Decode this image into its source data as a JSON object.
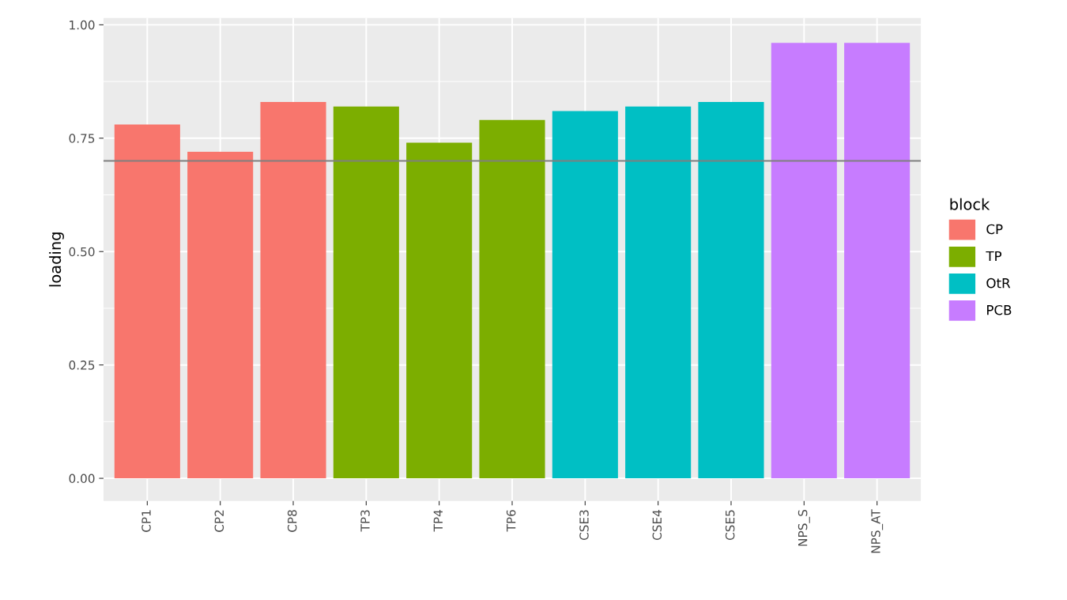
{
  "chart_data": {
    "type": "bar",
    "ylabel": "loading",
    "legend_title": "block",
    "categories": [
      "CP1",
      "CP2",
      "CP8",
      "TP3",
      "TP4",
      "TP6",
      "CSE3",
      "CSE4",
      "CSE5",
      "NPS_S",
      "NPS_AT"
    ],
    "series": [
      {
        "name": "CP",
        "color": "#f8766d",
        "values": [
          0.78,
          0.72,
          0.83,
          null,
          null,
          null,
          null,
          null,
          null,
          null,
          null
        ]
      },
      {
        "name": "TP",
        "color": "#7cae00",
        "values": [
          null,
          null,
          null,
          0.82,
          0.74,
          0.79,
          null,
          null,
          null,
          null,
          null
        ]
      },
      {
        "name": "OtR",
        "color": "#00bfc4",
        "values": [
          null,
          null,
          null,
          null,
          null,
          null,
          0.81,
          0.82,
          0.83,
          null,
          null
        ]
      },
      {
        "name": "PCB",
        "color": "#c77cff",
        "values": [
          null,
          null,
          null,
          null,
          null,
          null,
          null,
          null,
          null,
          0.96,
          0.96
        ]
      }
    ],
    "ylim": [
      -0.05,
      1.015
    ],
    "yticks": [
      {
        "value": 0,
        "label": "0.00"
      },
      {
        "value": 0.25,
        "label": "0.25"
      },
      {
        "value": 0.5,
        "label": "0.50"
      },
      {
        "value": 0.75,
        "label": "0.75"
      },
      {
        "value": 1,
        "label": "1.00"
      }
    ],
    "ref_lines": [
      {
        "axis": "y",
        "value": 0.7,
        "color": "#7f7f7f"
      }
    ],
    "grid": true,
    "legend": "right"
  }
}
